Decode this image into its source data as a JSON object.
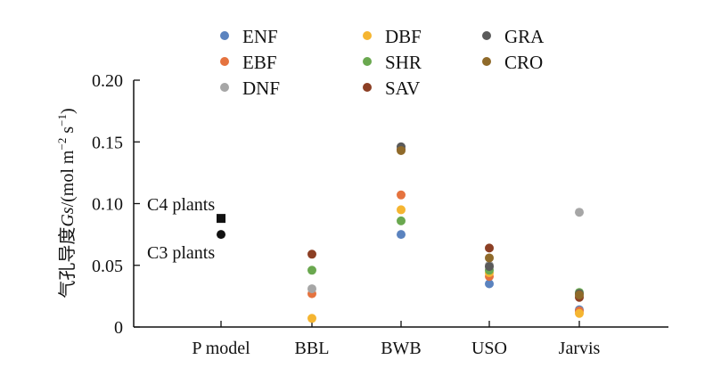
{
  "chart_data": {
    "type": "scatter",
    "ylabel_prefix": "气孔导度",
    "ylabel_var": "Gs",
    "ylabel_unit": "/(mol m",
    "ylabel_exp1": "−2",
    "ylabel_mid": " s",
    "ylabel_exp2": "−1",
    "ylabel_close": ")",
    "ylim": [
      0,
      0.2
    ],
    "yticks": [
      {
        "value": 0,
        "label": "0"
      },
      {
        "value": 0.05,
        "label": "0.05"
      },
      {
        "value": 0.1,
        "label": "0.10"
      },
      {
        "value": 0.15,
        "label": "0.15"
      },
      {
        "value": 0.2,
        "label": "0.20"
      }
    ],
    "categories": [
      "P model",
      "BBL",
      "BWB",
      "USO",
      "Jarvis"
    ],
    "grid": false,
    "legend_position": "top",
    "series": [
      {
        "name": "ENF",
        "color": "#5b83bf",
        "values": [
          null,
          null,
          0.075,
          0.035,
          0.014
        ]
      },
      {
        "name": "EBF",
        "color": "#e5733f",
        "values": [
          null,
          0.027,
          0.107,
          0.041,
          0.013
        ]
      },
      {
        "name": "DNF",
        "color": "#a6a6a6",
        "values": [
          null,
          0.031,
          null,
          0.05,
          0.093
        ]
      },
      {
        "name": "DBF",
        "color": "#f5b531",
        "values": [
          null,
          0.007,
          0.095,
          0.044,
          0.011
        ]
      },
      {
        "name": "SHR",
        "color": "#6aa84f",
        "values": [
          null,
          0.046,
          0.086,
          0.046,
          0.028
        ]
      },
      {
        "name": "SAV",
        "color": "#8c3f24",
        "values": [
          null,
          0.059,
          0.144,
          0.064,
          0.024
        ]
      },
      {
        "name": "GRA",
        "color": "#5a5a5a",
        "values": [
          null,
          null,
          0.146,
          0.049,
          0.027
        ]
      },
      {
        "name": "CRO",
        "color": "#8f6a2a",
        "values": [
          null,
          null,
          0.143,
          0.056,
          0.026
        ]
      }
    ],
    "pmodel_points": [
      {
        "name": "C4 plants",
        "value": 0.088,
        "marker": "square",
        "color": "#111111"
      },
      {
        "name": "C3 plants",
        "value": 0.075,
        "marker": "circle",
        "color": "#111111"
      }
    ]
  }
}
